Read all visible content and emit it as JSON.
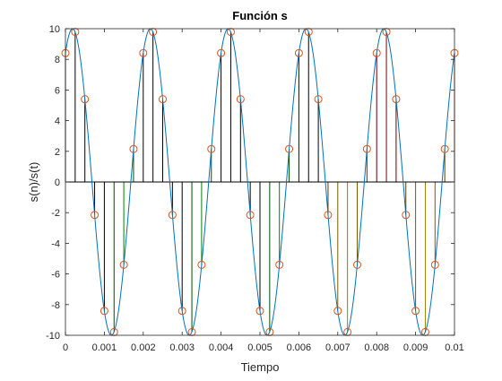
{
  "chart_data": {
    "type": "line",
    "title": "Función s",
    "xlabel": "Tiempo",
    "ylabel": "s(n)/s(t)",
    "xlim": [
      0,
      0.01
    ],
    "ylim": [
      -10,
      10
    ],
    "grid": false,
    "x_ticks": [
      "0",
      "0.001",
      "0.002",
      "0.003",
      "0.004",
      "0.005",
      "0.006",
      "0.007",
      "0.008",
      "0.009",
      "0.01"
    ],
    "y_ticks": [
      "-10",
      "-8",
      "-6",
      "-4",
      "-2",
      "0",
      "2",
      "4",
      "6",
      "8",
      "10"
    ],
    "continuous_signal": {
      "name": "s(t)",
      "function": "10*sin(2*pi*500*t + 1.0)",
      "amplitude": 10,
      "frequency_hz": 500,
      "phase_rad": 1.0,
      "color": "#0072bd"
    },
    "samples": {
      "name": "s(n)",
      "marker": "circle",
      "marker_color": "#d95319",
      "x": [
        0,
        0.00025,
        0.0005,
        0.00075,
        0.001,
        0.00125,
        0.0015,
        0.00175,
        0.002,
        0.00225,
        0.0025,
        0.00275,
        0.003,
        0.00325,
        0.0035,
        0.00375,
        0.004,
        0.00425,
        0.0045,
        0.00475,
        0.005,
        0.00525,
        0.0055,
        0.00575,
        0.006,
        0.00625,
        0.0065,
        0.00675,
        0.007,
        0.00725,
        0.0075,
        0.00775,
        0.008,
        0.00825,
        0.0085,
        0.00875,
        0.009,
        0.00925,
        0.0095,
        0.00975,
        0.01
      ],
      "y": [
        8.41,
        9.79,
        5.4,
        -2.15,
        -8.41,
        -9.79,
        -5.4,
        2.15,
        8.41,
        9.79,
        5.4,
        -2.15,
        -8.41,
        -9.79,
        -5.4,
        2.15,
        8.41,
        9.79,
        5.4,
        -2.15,
        -8.41,
        -9.79,
        -5.4,
        2.15,
        8.41,
        9.79,
        5.4,
        -2.15,
        -8.41,
        -9.79,
        -5.4,
        2.15,
        8.41,
        9.79,
        5.4,
        -2.15,
        -8.41,
        -9.79,
        -5.4,
        2.15,
        8.41
      ],
      "stem_colors": [
        "#000000",
        "#000000",
        "#000000",
        "#000000",
        "#000000",
        "#004d00",
        "#008000",
        "#004d00",
        "#000000",
        "#000000",
        "#000000",
        "#000000",
        "#000000",
        "#004d00",
        "#008000",
        "#004d00",
        "#000000",
        "#000000",
        "#000000",
        "#000000",
        "#000000",
        "#004d00",
        "#008000",
        "#004d00",
        "#2b0000",
        "#000000",
        "#000000",
        "#5a3a00",
        "#7a5c00",
        "#9a8000",
        "#7a5c00",
        "#5a3a00",
        "#6b0000",
        "#800000",
        "#6b0000",
        "#5a3a00",
        "#7a5c00",
        "#9a8000",
        "#7a5c00",
        "#5a3a00",
        "#aa0000"
      ]
    }
  }
}
